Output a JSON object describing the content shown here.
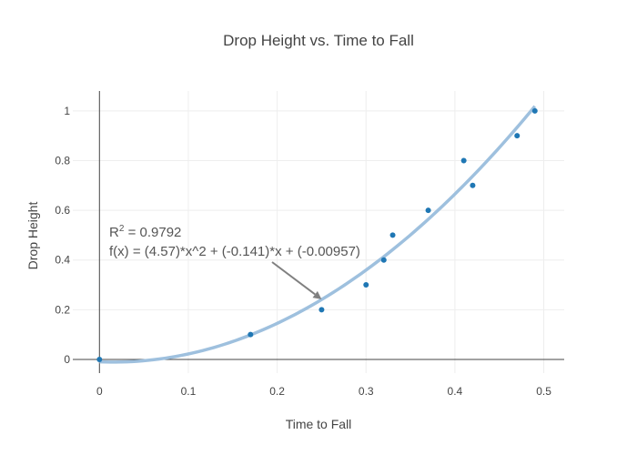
{
  "chart_data": {
    "type": "scatter",
    "title": "Drop Height vs. Time to Fall",
    "xlabel": "Time to Fall",
    "ylabel": "Drop Height",
    "xlim": [
      -0.03,
      0.523
    ],
    "ylim": [
      -0.055,
      1.08
    ],
    "xticks": [
      0,
      0.1,
      0.2,
      0.3,
      0.4,
      0.5
    ],
    "yticks": [
      0,
      0.2,
      0.4,
      0.6,
      0.8,
      1
    ],
    "xtick_labels": [
      "0",
      "0.1",
      "0.2",
      "0.3",
      "0.4",
      "0.5"
    ],
    "ytick_labels": [
      "0",
      "0.2",
      "0.4",
      "0.6",
      "0.8",
      "1"
    ],
    "grid": true,
    "points": {
      "x": [
        0,
        0.17,
        0.25,
        0.3,
        0.32,
        0.33,
        0.37,
        0.41,
        0.42,
        0.47,
        0.49
      ],
      "y": [
        0,
        0.1,
        0.2,
        0.3,
        0.4,
        0.5,
        0.6,
        0.8,
        0.7,
        0.9,
        1.0
      ],
      "color": "#1f77b4"
    },
    "fit": {
      "a": 4.57,
      "b": -0.141,
      "c": -0.00957,
      "x_range": [
        0,
        0.49
      ],
      "color": "#9ec0de"
    },
    "annotation": {
      "r2_label": "R",
      "r2_exponent": "2",
      "r2_value": " = 0.9792",
      "equation": "f(x) = (4.57)*x^2 + (-0.141)*x + (-0.00957)",
      "arrow_target": [
        0.25,
        0.242
      ],
      "arrow_color": "#808080"
    }
  }
}
